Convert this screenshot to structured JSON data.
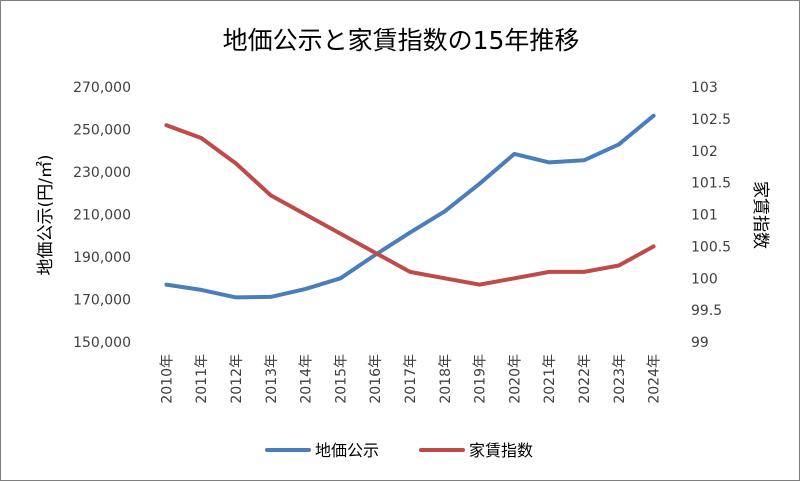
{
  "chart_data": {
    "type": "line",
    "title": "地価公示と家賃指数の15年推移",
    "categories": [
      "2010年",
      "2011年",
      "2012年",
      "2013年",
      "2014年",
      "2015年",
      "2016年",
      "2017年",
      "2018年",
      "2019年",
      "2020年",
      "2021年",
      "2022年",
      "2023年",
      "2024年"
    ],
    "y_left": {
      "label": "地価公示(円/㎡)",
      "range": [
        150000,
        270000
      ],
      "ticks": [
        "150,000",
        "170,000",
        "190,000",
        "210,000",
        "230,000",
        "250,000",
        "270,000"
      ]
    },
    "y_right": {
      "label": "家賃指数",
      "range": [
        99,
        103
      ],
      "ticks": [
        "99",
        "99.5",
        "100",
        "100.5",
        "101",
        "101.5",
        "102",
        "102.5",
        "103"
      ]
    },
    "series": [
      {
        "name": "地価公示",
        "axis": "left",
        "color": "#4a7ebb",
        "values": [
          177000,
          174500,
          171000,
          171200,
          175000,
          180000,
          191000,
          201500,
          211500,
          224500,
          238500,
          234500,
          235500,
          243000,
          256500
        ]
      },
      {
        "name": "家賃指数",
        "axis": "right",
        "color": "#be4b48",
        "values": [
          102.4,
          102.2,
          101.8,
          101.3,
          101.0,
          100.7,
          100.4,
          100.1,
          100.0,
          99.9,
          100.0,
          100.1,
          100.1,
          100.2,
          100.5
        ]
      }
    ],
    "legend_position": "bottom",
    "grid": false
  }
}
